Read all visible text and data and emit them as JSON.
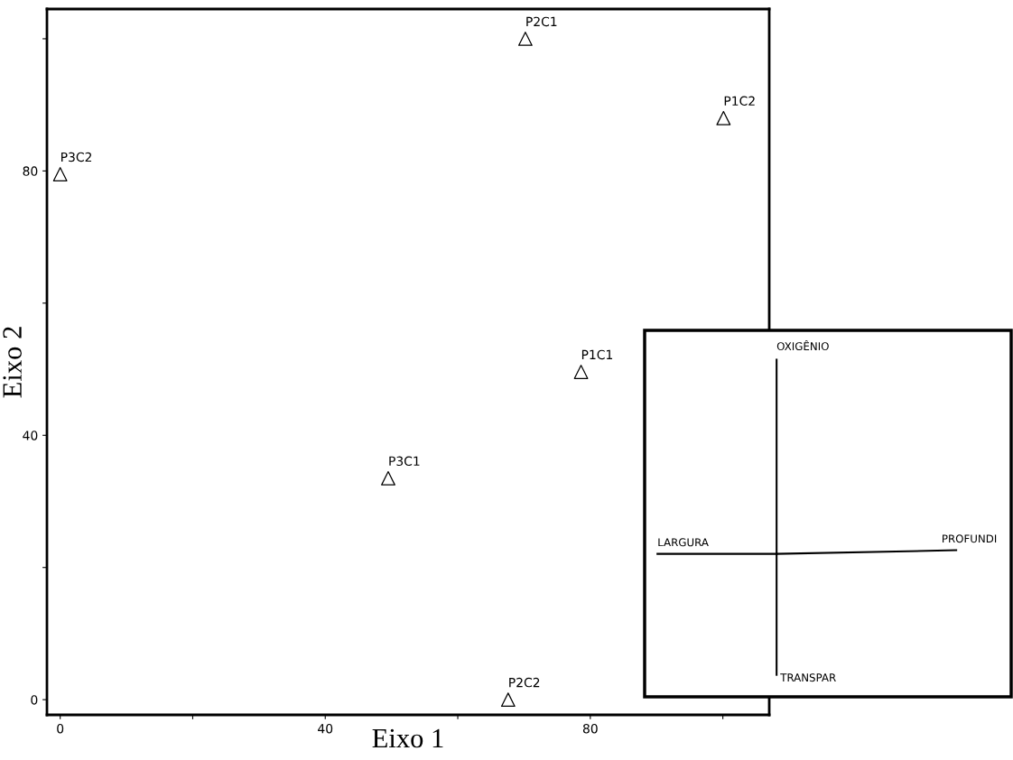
{
  "chart_data": [
    {
      "type": "scatter",
      "xlabel": "Eixo 1",
      "ylabel": "Eixo 2",
      "marker": "triangle",
      "grid": false,
      "x": [
        70.2,
        100.1,
        0,
        78.6,
        49.5,
        67.6
      ],
      "series": [
        {
          "color": "#000000",
          "values": [
            100.0,
            88.0,
            79.5,
            49.6,
            33.5,
            0
          ]
        }
      ],
      "annotations": [
        {
          "text": "P2C1",
          "x": 70.2,
          "y": 100.0
        },
        {
          "text": "P1C2",
          "x": 100.1,
          "y": 88.0
        },
        {
          "text": "P3C2",
          "x": 0,
          "y": 79.5
        },
        {
          "text": "P1C1",
          "x": 78.6,
          "y": 49.6
        },
        {
          "text": "P3C1",
          "x": 49.5,
          "y": 33.5
        },
        {
          "text": "P2C2",
          "x": 67.6,
          "y": 0
        }
      ],
      "xlim": [
        -2,
        107
      ],
      "ylim": [
        -2.3,
        104.5
      ],
      "xticks": [
        0,
        {
          "value": 20,
          "label": null
        },
        40,
        {
          "value": 60,
          "label": null
        },
        80,
        {
          "value": 100,
          "label": null
        }
      ],
      "yticks": [
        0,
        {
          "value": 20,
          "label": null
        },
        40,
        {
          "value": 60,
          "label": null
        },
        80,
        {
          "value": 100,
          "label": null
        }
      ]
    },
    {
      "type": "other",
      "annotations": [
        "OXIGÊNIO",
        "TRANSPAR",
        "LARGURA",
        "PROFUNDI"
      ]
    }
  ]
}
